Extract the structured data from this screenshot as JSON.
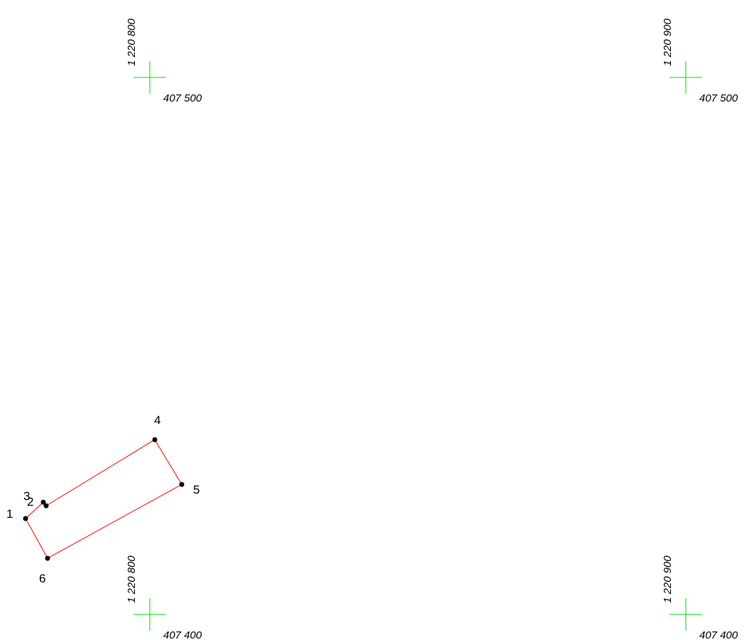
{
  "grid_marks": [
    {
      "id": "top-left",
      "easting": "1 220 800",
      "northing": "407 500"
    },
    {
      "id": "top-right",
      "easting": "1 220 900",
      "northing": "407 500"
    },
    {
      "id": "bottom-left",
      "easting": "1 220 800",
      "northing": "407 400"
    },
    {
      "id": "bottom-right",
      "easting": "1 220 900",
      "northing": "407 400"
    }
  ],
  "parcel": {
    "boundary_color": "#ff0000",
    "point_color": "#000000",
    "points": [
      {
        "label": "1"
      },
      {
        "label": "2"
      },
      {
        "label": "3"
      },
      {
        "label": "4"
      },
      {
        "label": "5"
      },
      {
        "label": "6"
      }
    ]
  },
  "grid_mark_color": "#00dd00"
}
